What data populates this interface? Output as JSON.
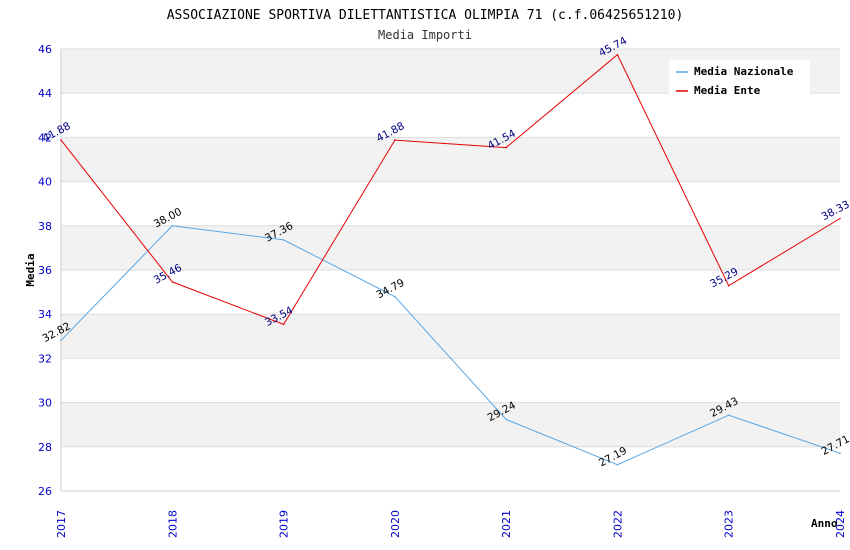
{
  "chart_data": {
    "type": "line",
    "title": "ASSOCIAZIONE SPORTIVA DILETTANTISTICA OLIMPIA 71 (c.f.06425651210)",
    "subtitle": "Media Importi",
    "xlabel": "Anno",
    "ylabel": "Media",
    "x": [
      "2017",
      "2018",
      "2019",
      "2020",
      "2021",
      "2022",
      "2023",
      "2024"
    ],
    "ylim": [
      26,
      46
    ],
    "yticks": [
      26,
      28,
      30,
      32,
      34,
      36,
      38,
      40,
      42,
      44,
      46
    ],
    "grid": true,
    "legend_position": "top-right",
    "series": [
      {
        "name": "Media Nazionale",
        "color": "#5aa7e6",
        "label_color": "#000000",
        "values": [
          32.82,
          38.0,
          37.36,
          34.79,
          29.24,
          27.19,
          29.43,
          27.71
        ],
        "labels": [
          "32.82",
          "38.00",
          "37.36",
          "34.79",
          "29.24",
          "27.19",
          "29.43",
          "27.71"
        ]
      },
      {
        "name": "Media Ente",
        "color": "#e60000",
        "label_color": "#000080",
        "values": [
          41.88,
          35.46,
          33.54,
          41.88,
          41.54,
          45.74,
          35.29,
          38.33
        ],
        "labels": [
          "41.88",
          "35.46",
          "33.54",
          "41.88",
          "41.54",
          "45.74",
          "35.29",
          "38.33"
        ]
      }
    ]
  }
}
